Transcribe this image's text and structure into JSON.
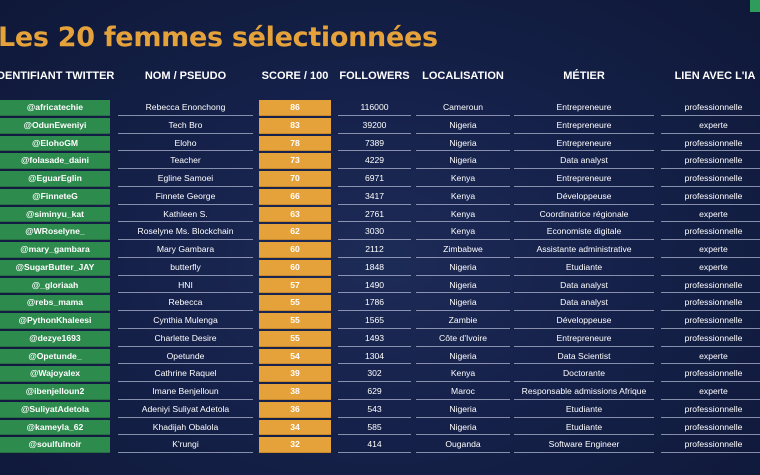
{
  "title": "Les 20 femmes sélectionnées",
  "headers": {
    "handle": "IDENTIFIANT TWITTER",
    "name": "NOM / PSEUDO",
    "score": "SCORE / 100",
    "followers": "FOLLOWERS",
    "location": "LOCALISATION",
    "job": "MÉTIER",
    "ai_link": "LIEN AVEC L'IA"
  },
  "colors": {
    "title": "#e6a23a",
    "handle_col": "#2e8b4e",
    "score_col": "#e6a23a",
    "background": "#15214a"
  },
  "rows": [
    {
      "handle": "@africatechie",
      "name": "Rebecca Enonchong",
      "score": "86",
      "followers": "116000",
      "location": "Cameroun",
      "job": "Entrepreneure",
      "ai_link": "professionnelle"
    },
    {
      "handle": "@OdunEweniyi",
      "name": "Tech Bro",
      "score": "83",
      "followers": "39200",
      "location": "Nigeria",
      "job": "Entrepreneure",
      "ai_link": "experte"
    },
    {
      "handle": "@ElohoGM",
      "name": "Eloho",
      "score": "78",
      "followers": "7389",
      "location": "Nigeria",
      "job": "Entrepreneure",
      "ai_link": "professionnelle"
    },
    {
      "handle": "@folasade_daini",
      "name": "Teacher",
      "score": "73",
      "followers": "4229",
      "location": "Nigeria",
      "job": "Data analyst",
      "ai_link": "professionnelle"
    },
    {
      "handle": "@EguarEglin",
      "name": "Egline Samoei",
      "score": "70",
      "followers": "6971",
      "location": "Kenya",
      "job": "Entrepreneure",
      "ai_link": "professionnelle"
    },
    {
      "handle": "@FinneteG",
      "name": "Finnete George",
      "score": "66",
      "followers": "3417",
      "location": "Kenya",
      "job": "Développeuse",
      "ai_link": "professionnelle"
    },
    {
      "handle": "@siminyu_kat",
      "name": "Kathleen S.",
      "score": "63",
      "followers": "2761",
      "location": "Kenya",
      "job": "Coordinatrice régionale",
      "ai_link": "experte"
    },
    {
      "handle": "@WRoselyne_",
      "name": "Roselyne Ms. Blockchain",
      "score": "62",
      "followers": "3030",
      "location": "Kenya",
      "job": "Economiste digitale",
      "ai_link": "professionnelle"
    },
    {
      "handle": "@mary_gambara",
      "name": "Mary Gambara",
      "score": "60",
      "followers": "2112",
      "location": "Zimbabwe",
      "job": "Assistante administrative",
      "ai_link": "experte"
    },
    {
      "handle": "@SugarButter_JAY",
      "name": "butterfly",
      "score": "60",
      "followers": "1848",
      "location": "Nigeria",
      "job": "Etudiante",
      "ai_link": "experte"
    },
    {
      "handle": "@_gloriaah",
      "name": "HNI",
      "score": "57",
      "followers": "1490",
      "location": "Nigeria",
      "job": "Data analyst",
      "ai_link": "professionnelle"
    },
    {
      "handle": "@rebs_mama",
      "name": "Rebecca",
      "score": "55",
      "followers": "1786",
      "location": "Nigeria",
      "job": "Data analyst",
      "ai_link": "professionnelle"
    },
    {
      "handle": "@PythonKhaleesi",
      "name": "Cynthia Mulenga",
      "score": "55",
      "followers": "1565",
      "location": "Zambie",
      "job": "Développeuse",
      "ai_link": "professionnelle"
    },
    {
      "handle": "@dezye1693",
      "name": "Charlette Desire",
      "score": "55",
      "followers": "1493",
      "location": "Côte d'Ivoire",
      "job": "Entrepreneure",
      "ai_link": "professionnelle"
    },
    {
      "handle": "@Opetunde_",
      "name": "Opetunde",
      "score": "54",
      "followers": "1304",
      "location": "Nigeria",
      "job": "Data Scientist",
      "ai_link": "experte"
    },
    {
      "handle": "@Wajoyalex",
      "name": "Cathrine Raquel",
      "score": "39",
      "followers": "302",
      "location": "Kenya",
      "job": "Doctorante",
      "ai_link": "professionnelle"
    },
    {
      "handle": "@ibenjelloun2",
      "name": "Imane Benjelloun",
      "score": "38",
      "followers": "629",
      "location": "Maroc",
      "job": "Responsable admissions Afrique",
      "ai_link": "experte"
    },
    {
      "handle": "@SuliyatAdetola",
      "name": "Adeniyi Suliyat Adetola",
      "score": "36",
      "followers": "543",
      "location": "Nigeria",
      "job": "Etudiante",
      "ai_link": "professionnelle"
    },
    {
      "handle": "@kameyla_62",
      "name": "Khadijah Obalola",
      "score": "34",
      "followers": "585",
      "location": "Nigeria",
      "job": "Etudiante",
      "ai_link": "professionnelle"
    },
    {
      "handle": "@soulfulnoir",
      "name": "K'rungi",
      "score": "32",
      "followers": "414",
      "location": "Ouganda",
      "job": "Software Engineer",
      "ai_link": "professionnelle"
    }
  ]
}
